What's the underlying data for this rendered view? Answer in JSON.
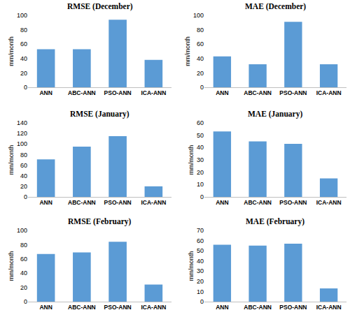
{
  "chart_data": [
    {
      "type": "bar",
      "title": "RMSE (December)",
      "y_label": "mm/month",
      "categories": [
        "ANN",
        "ABC-ANN",
        "PSO-ANN",
        "ICA-ANN"
      ],
      "values": [
        53,
        53,
        94,
        38
      ],
      "color": "#5b9bd5",
      "ylim": [
        0,
        100
      ],
      "yticks": [
        0,
        20,
        40,
        60,
        80,
        100
      ],
      "grid": false
    },
    {
      "type": "bar",
      "title": "MAE (December)",
      "y_label": "mm/month",
      "categories": [
        "ANN",
        "ABC-ANN",
        "PSO-ANN",
        "ICA-ANN"
      ],
      "values": [
        43,
        32,
        91,
        32
      ],
      "color": "#5b9bd5",
      "ylim": [
        0,
        100
      ],
      "yticks": [
        0,
        20,
        40,
        60,
        80,
        100
      ],
      "grid": false
    },
    {
      "type": "bar",
      "title": "RMSE (January)",
      "y_label": "mm/month",
      "categories": [
        "ANN",
        "ABC-ANN",
        "PSO-ANN",
        "ICA-ANN"
      ],
      "values": [
        71,
        95,
        115,
        20
      ],
      "color": "#5b9bd5",
      "ylim": [
        0,
        140
      ],
      "yticks": [
        0,
        20,
        40,
        60,
        80,
        100,
        120,
        140
      ],
      "grid": false
    },
    {
      "type": "bar",
      "title": "MAE (January)",
      "y_label": "mm/month",
      "categories": [
        "ANN",
        "ABC-ANN",
        "PSO-ANN",
        "ICA-ANN"
      ],
      "values": [
        53,
        45,
        43,
        15
      ],
      "color": "#5b9bd5",
      "ylim": [
        0,
        60
      ],
      "yticks": [
        0,
        10,
        20,
        30,
        40,
        50,
        60
      ],
      "grid": false
    },
    {
      "type": "bar",
      "title": "RMSE (February)",
      "y_label": "mm/month",
      "categories": [
        "ANN",
        "ABC-ANN",
        "PSO-ANN",
        "ICA-ANN"
      ],
      "values": [
        67,
        69,
        84,
        24
      ],
      "color": "#5b9bd5",
      "ylim": [
        0,
        100
      ],
      "yticks": [
        0,
        20,
        40,
        60,
        80,
        100
      ],
      "grid": false
    },
    {
      "type": "bar",
      "title": "MAE (February)",
      "y_label": "mm/month",
      "categories": [
        "ANN",
        "ABC-ANN",
        "PSO-ANN",
        "ICA-ANN"
      ],
      "values": [
        56,
        55,
        57,
        13
      ],
      "color": "#5b9bd5",
      "ylim": [
        0,
        70
      ],
      "yticks": [
        0,
        10,
        20,
        30,
        40,
        50,
        60,
        70
      ],
      "grid": false
    }
  ]
}
